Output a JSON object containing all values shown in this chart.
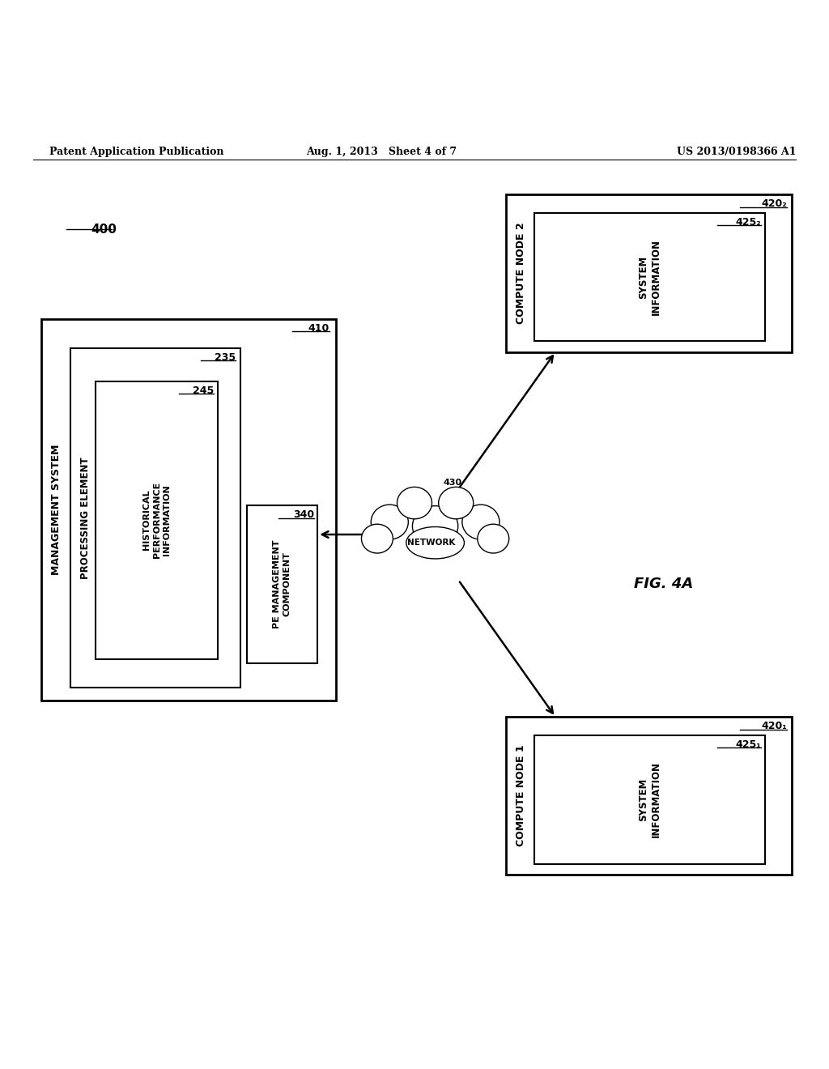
{
  "bg_color": "#ffffff",
  "text_color": "#000000",
  "header_left": "Patent Application Publication",
  "header_mid": "Aug. 1, 2013   Sheet 4 of 7",
  "header_right": "US 2013/0198366 A1",
  "fig_label": "FIG. 4A",
  "diagram_label": "400"
}
